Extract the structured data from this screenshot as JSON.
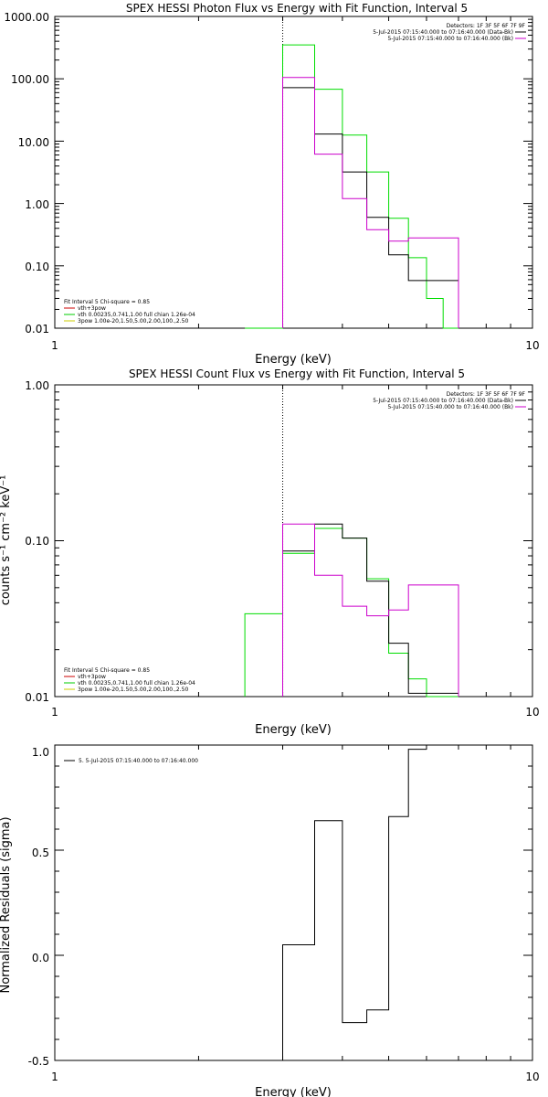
{
  "chart_data": [
    {
      "type": "step",
      "title": "SPEX HESSI Photon Flux vs Energy with Fit Function, Interval 5",
      "xlabel": "Energy (keV)",
      "ylabel": "",
      "xscale": "log",
      "yscale": "log",
      "xlim": [
        1,
        10
      ],
      "ylim": [
        0.01,
        1000
      ],
      "x_ticks": [
        1,
        10
      ],
      "x_tick_labels": [
        "1",
        "10"
      ],
      "y_ticks": [
        0.01,
        0.1,
        1,
        10,
        100,
        1000
      ],
      "y_tick_labels": [
        "0.01",
        "0.10",
        "1.00",
        "10.00",
        "100.00",
        "1000.00"
      ],
      "vline_x": 3.0,
      "legend_placement": "top-right",
      "legend": [
        {
          "text": "Detectors: 1F 3F 5F 6F 7F 9F",
          "color": ""
        },
        {
          "text": "5-Jul-2015 07:15:40.000 to 07:16:40.000 (Data-Bk)",
          "color": "#000000"
        },
        {
          "text": "5-Jul-2015 07:15:40.000 to 07:16:40.000 (Bk)",
          "color": "#cc00cc"
        }
      ],
      "fit_legend_placement": "bottom-left",
      "fit_legend": [
        {
          "text": "Fit Interval 5   Chi-square = 0.85",
          "color": ""
        },
        {
          "text": "vth+3pow",
          "color": "#cc0000"
        },
        {
          "text": "vth 0.00235,0.741,1.00   full chian 1.26e-04",
          "color": "#00cc00"
        },
        {
          "text": "3pow 1.00e-20,1.50,5.00,2.00,100.,2.50",
          "color": "#cccc00"
        }
      ],
      "series": [
        {
          "name": "vth",
          "color": "#00dd00",
          "edges": [
            2.5,
            3.0,
            3.5,
            4.0,
            4.5,
            5.0,
            5.5,
            6.0,
            6.5,
            7.0
          ],
          "values": [
            0.01,
            350,
            68,
            12.5,
            3.2,
            0.58,
            0.135,
            0.03,
            0.01
          ]
        },
        {
          "name": "Data-Bk",
          "color": "#000000",
          "edges": [
            3.0,
            3.5,
            4.0,
            4.5,
            5.0,
            5.5,
            6.0,
            6.5,
            7.0
          ],
          "values": [
            72,
            13,
            3.2,
            0.6,
            0.15,
            0.058,
            0.058,
            0.058
          ]
        },
        {
          "name": "Bk",
          "color": "#cc00cc",
          "edges": [
            3.0,
            3.5,
            4.0,
            4.5,
            5.0,
            5.5,
            6.0,
            6.5,
            7.0
          ],
          "values": [
            105,
            6.2,
            1.2,
            0.38,
            0.25,
            0.28,
            0.28,
            0.28
          ]
        }
      ]
    },
    {
      "type": "step",
      "title": "SPEX HESSI Count Flux vs Energy with Fit Function, Interval 5",
      "xlabel": "Energy (keV)",
      "ylabel": "counts s⁻¹ cm⁻² keV⁻¹",
      "xscale": "log",
      "yscale": "log",
      "xlim": [
        1,
        10
      ],
      "ylim": [
        0.01,
        1
      ],
      "x_ticks": [
        1,
        10
      ],
      "x_tick_labels": [
        "1",
        "10"
      ],
      "y_ticks": [
        0.01,
        0.1,
        1
      ],
      "y_tick_labels": [
        "0.01",
        "0.10",
        "1.00"
      ],
      "vline_x": 3.0,
      "legend_placement": "top-right",
      "legend": [
        {
          "text": "Detectors: 1F 3F 5F 6F 7F 9F",
          "color": ""
        },
        {
          "text": "5-Jul-2015 07:15:40.000 to 07:16:40.000 (Data-Bk)",
          "color": "#000000"
        },
        {
          "text": "5-Jul-2015 07:15:40.000 to 07:16:40.000 (Bk)",
          "color": "#cc00cc"
        }
      ],
      "fit_legend_placement": "bottom-left",
      "fit_legend": [
        {
          "text": "Fit Interval 5   Chi-square = 0.85",
          "color": ""
        },
        {
          "text": "vth+3pow",
          "color": "#cc0000"
        },
        {
          "text": "vth 0.00235,0.741,1.00   full chian 1.26e-04",
          "color": "#00cc00"
        },
        {
          "text": "3pow 1.00e-20,1.50,5.00,2.00,100.,2.50",
          "color": "#cccc00"
        }
      ],
      "series": [
        {
          "name": "vth",
          "color": "#00dd00",
          "edges": [
            2.5,
            3.0,
            3.5,
            4.0,
            4.5,
            5.0,
            5.5,
            6.0,
            6.5,
            7.0
          ],
          "values": [
            0.034,
            0.083,
            0.12,
            0.104,
            0.057,
            0.019,
            0.013,
            0.009,
            0.009
          ]
        },
        {
          "name": "Data-Bk",
          "color": "#000000",
          "edges": [
            3.0,
            3.5,
            4.0,
            4.5,
            5.0,
            5.5,
            6.0,
            6.5,
            7.0
          ],
          "values": [
            0.086,
            0.128,
            0.104,
            0.055,
            0.022,
            0.0105,
            0.0105,
            0.0105
          ]
        },
        {
          "name": "Bk",
          "color": "#cc00cc",
          "edges": [
            3.0,
            3.5,
            4.0,
            4.5,
            5.0,
            5.5,
            6.0,
            6.5,
            7.0
          ],
          "values": [
            0.128,
            0.06,
            0.038,
            0.033,
            0.036,
            0.052,
            0.052,
            0.052
          ]
        }
      ]
    },
    {
      "type": "step",
      "title": "",
      "xlabel": "Energy (keV)",
      "ylabel": "Normalized Residuals (sigma)",
      "xscale": "log",
      "yscale": "linear",
      "xlim": [
        1,
        10
      ],
      "ylim": [
        -0.5,
        1.0
      ],
      "x_ticks": [
        1,
        10
      ],
      "x_tick_labels": [
        "1",
        "10"
      ],
      "y_ticks": [
        -0.5,
        0,
        0.5,
        1.0
      ],
      "y_tick_labels": [
        "-0.5",
        "0.0",
        "0.5",
        "1.0"
      ],
      "legend_placement": "top-left",
      "legend": [
        {
          "text": "5.  5-Jul-2015 07:15:40.000 to 07:16:40.000",
          "color": "#000000"
        }
      ],
      "series": [
        {
          "name": "residuals",
          "color": "#000000",
          "edges": [
            3.0,
            3.5,
            4.0,
            4.5,
            5.0,
            5.5,
            6.0
          ],
          "values": [
            0.05,
            0.64,
            -0.32,
            -0.26,
            0.66,
            0.98
          ]
        }
      ]
    }
  ]
}
